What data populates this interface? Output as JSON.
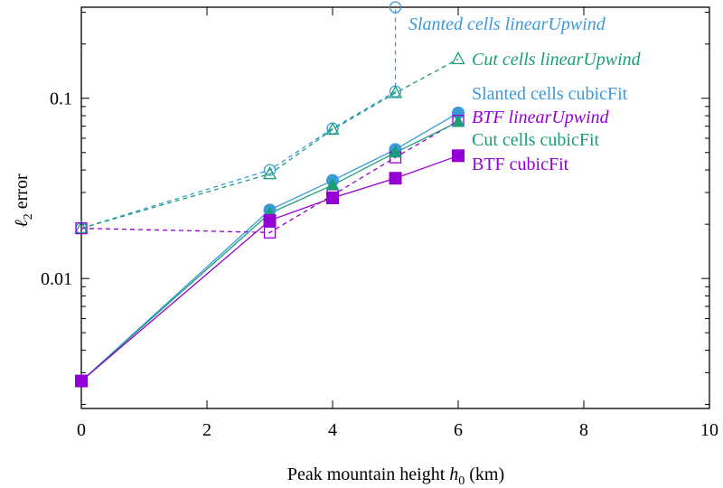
{
  "chart_data": {
    "type": "line",
    "xlabel_prefix": "Peak mountain height ",
    "xlabel_var": "h",
    "xlabel_sub": "0",
    "xlabel_suffix": " (km)",
    "ylabel_var": "ℓ",
    "ylabel_sub": "2",
    "ylabel_suffix": " error",
    "xlim": [
      0,
      10
    ],
    "ylim": [
      0.0019,
      0.32
    ],
    "yscale": "log",
    "x_ticks": [
      {
        "value": 0,
        "label": "0"
      },
      {
        "value": 2,
        "label": "2"
      },
      {
        "value": 4,
        "label": "4"
      },
      {
        "value": 6,
        "label": "6"
      },
      {
        "value": 8,
        "label": "8"
      },
      {
        "value": 10,
        "label": "10"
      }
    ],
    "y_ticks": [
      {
        "value": 0.01,
        "label": "0.01"
      },
      {
        "value": 0.1,
        "label": "0.1"
      }
    ],
    "grid": false,
    "legend_position": "inside, right of last points",
    "series": [
      {
        "name": "Slanted cells linearUpwind",
        "color": "#3a9ad9",
        "style": "dashed",
        "marker": "open-circle",
        "italic": true,
        "points": [
          [
            0,
            0.019
          ],
          [
            3,
            0.04
          ],
          [
            4,
            0.068
          ],
          [
            5,
            0.109
          ],
          [
            5,
            0.32
          ]
        ]
      },
      {
        "name": "Cut cells linearUpwind",
        "color": "#1a9e77",
        "style": "dashed",
        "marker": "open-triangle",
        "italic": true,
        "points": [
          [
            0,
            0.019
          ],
          [
            3,
            0.038
          ],
          [
            4,
            0.067
          ],
          [
            5,
            0.107
          ],
          [
            6,
            0.165
          ]
        ]
      },
      {
        "name": "Slanted cells cubicFit",
        "color": "#3a9ad9",
        "style": "solid",
        "marker": "filled-circle",
        "italic": false,
        "points": [
          [
            0,
            0.0027
          ],
          [
            3,
            0.024
          ],
          [
            4,
            0.035
          ],
          [
            5,
            0.052
          ],
          [
            6,
            0.083
          ]
        ]
      },
      {
        "name": "BTF linearUpwind",
        "color": "#9400d3",
        "style": "dashed",
        "marker": "open-square",
        "italic": true,
        "points": [
          [
            0,
            0.019
          ],
          [
            3,
            0.018
          ],
          [
            4,
            0.029
          ],
          [
            5,
            0.047
          ],
          [
            6,
            0.075
          ]
        ]
      },
      {
        "name": "Cut cells cubicFit",
        "color": "#1a9e77",
        "style": "solid",
        "marker": "filled-triangle",
        "italic": false,
        "points": [
          [
            0,
            0.0027
          ],
          [
            3,
            0.023
          ],
          [
            4,
            0.033
          ],
          [
            5,
            0.05
          ],
          [
            6,
            0.074
          ]
        ]
      },
      {
        "name": "BTF cubicFit",
        "color": "#9400d3",
        "style": "solid",
        "marker": "filled-square",
        "italic": false,
        "points": [
          [
            0,
            0.0027
          ],
          [
            3,
            0.021
          ],
          [
            4,
            0.028
          ],
          [
            5,
            0.036
          ],
          [
            6,
            0.048
          ]
        ]
      }
    ]
  }
}
